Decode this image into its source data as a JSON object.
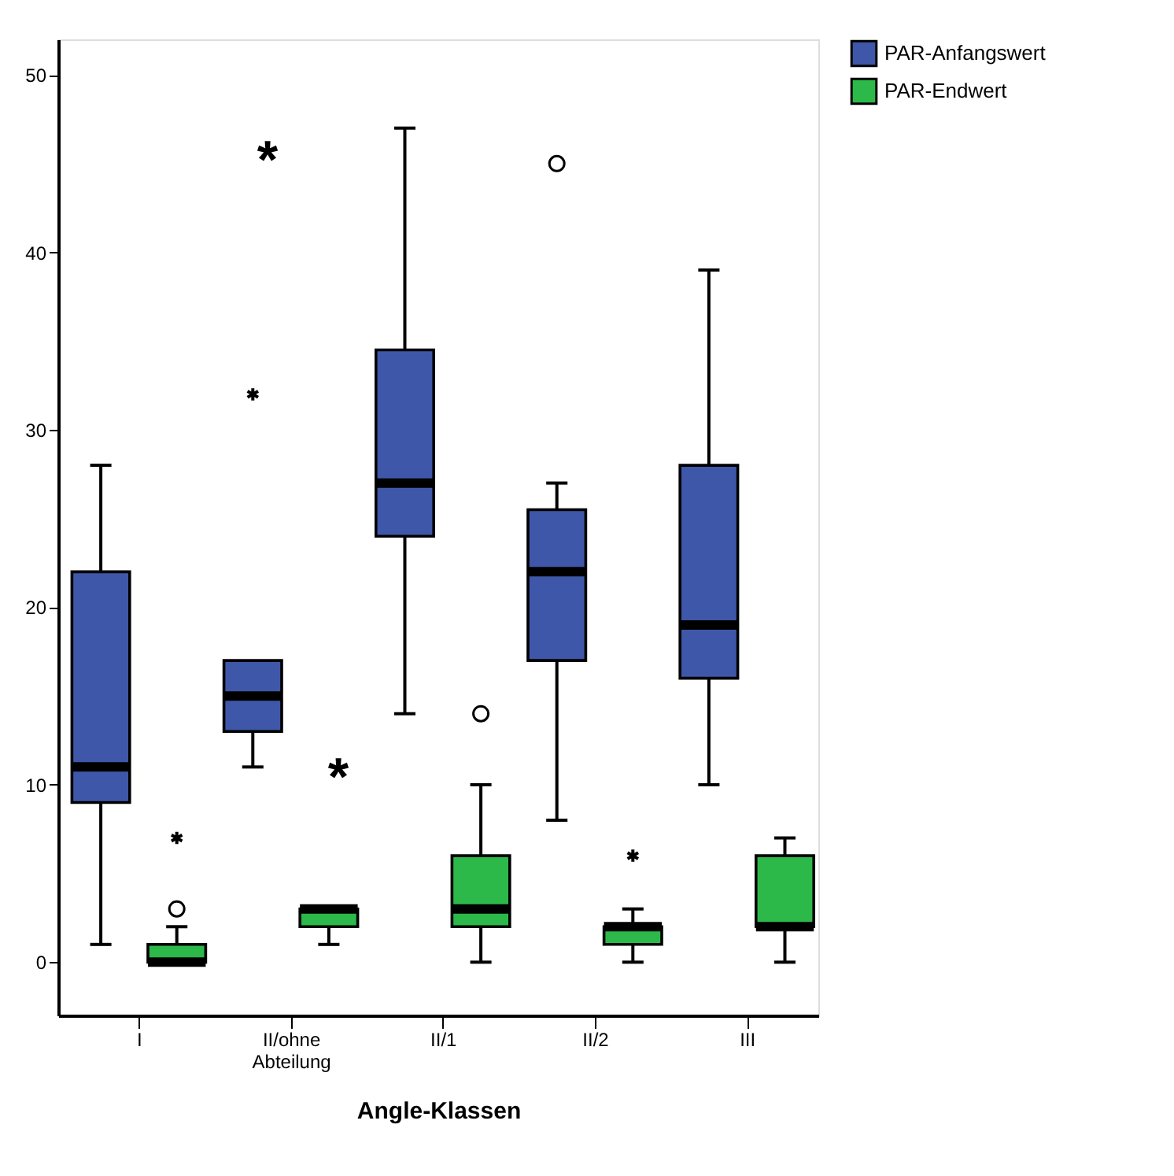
{
  "chart_data": {
    "type": "box",
    "xlabel": "Angle-Klassen",
    "categories": [
      "I",
      "II/ohne Abteilung",
      "II/1",
      "II/2",
      "III"
    ],
    "ylim": [
      -3,
      52
    ],
    "yticks": [
      0,
      10,
      20,
      30,
      40,
      50
    ],
    "grid": false,
    "legend": "top right",
    "series": [
      {
        "name": "PAR-Anfangswert",
        "color": "#3f57a8",
        "boxes": [
          {
            "low": 1,
            "q1": 9,
            "median": 11,
            "q3": 22,
            "high": 28
          },
          {
            "low": 11,
            "q1": 13,
            "median": 15,
            "q3": 17,
            "high": 17,
            "outliers": [
              32
            ]
          },
          {
            "low": 14,
            "q1": 24,
            "median": 27,
            "q3": 34.5,
            "high": 47
          },
          {
            "low": 8,
            "q1": 17,
            "median": 22,
            "q3": 25.5,
            "high": 27,
            "outliers": [
              45
            ]
          },
          {
            "low": 10,
            "q1": 16,
            "median": 19,
            "q3": 28,
            "high": 39
          }
        ]
      },
      {
        "name": "PAR-Endwert",
        "color": "#2db84a",
        "boxes": [
          {
            "low": 0,
            "q1": 0,
            "median": 0,
            "q3": 1,
            "high": 2,
            "outliers": [
              3,
              7
            ]
          },
          {
            "low": 1,
            "q1": 2,
            "median": 3,
            "q3": 3,
            "high": 3
          },
          {
            "low": 0,
            "q1": 2,
            "median": 3,
            "q3": 6,
            "high": 10,
            "outliers": [
              14
            ]
          },
          {
            "low": 0,
            "q1": 1,
            "median": 2,
            "q3": 2,
            "high": 3,
            "outliers": [
              6
            ]
          },
          {
            "low": 0,
            "q1": 2,
            "median": 2,
            "q3": 6,
            "high": 7
          }
        ]
      }
    ],
    "annotations": [
      "*",
      "*"
    ]
  }
}
